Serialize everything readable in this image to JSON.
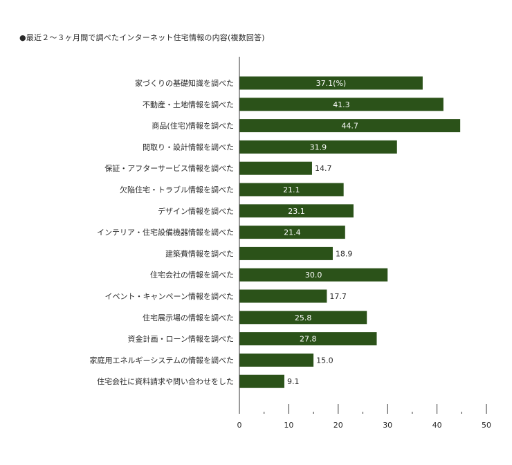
{
  "chart_data": {
    "type": "bar",
    "orientation": "horizontal",
    "title": "●最近２～３ヶ月間で調べたインターネット住宅情報の内容(複数回答)",
    "unit_label": "(%)",
    "categories": [
      "家づくりの基礎知識を調べた",
      "不動産・土地情報を調べた",
      "商品(住宅)情報を調べた",
      "間取り・設計情報を調べた",
      "保証・アフターサービス情報を調べた",
      "欠陥住宅・トラブル情報を調べた",
      "デザイン情報を調べた",
      "インテリア・住宅設備機器情報を調べた",
      "建築費情報を調べた",
      "住宅会社の情報を調べた",
      "イベント・キャンペーン情報を調べた",
      "住宅展示場の情報を調べた",
      "資金計画・ローン情報を調べた",
      "家庭用エネルギーシステムの情報を調べた",
      "住宅会社に資料請求や問い合わせをした"
    ],
    "values": [
      37.1,
      41.3,
      44.7,
      31.9,
      14.7,
      21.1,
      23.1,
      21.4,
      18.9,
      30.0,
      17.7,
      25.8,
      27.8,
      15.0,
      9.1
    ],
    "value_labels": [
      "37.1",
      "41.3",
      "44.7",
      "31.9",
      "14.7",
      "21.1",
      "23.1",
      "21.4",
      "18.9",
      "30.0",
      "17.7",
      "25.8",
      "27.8",
      "15.0",
      "9.1"
    ],
    "xlim": [
      0,
      50
    ],
    "xticks": [
      0,
      10,
      20,
      30,
      40,
      50
    ],
    "grid": false,
    "bar_color": "#2b5219"
  }
}
